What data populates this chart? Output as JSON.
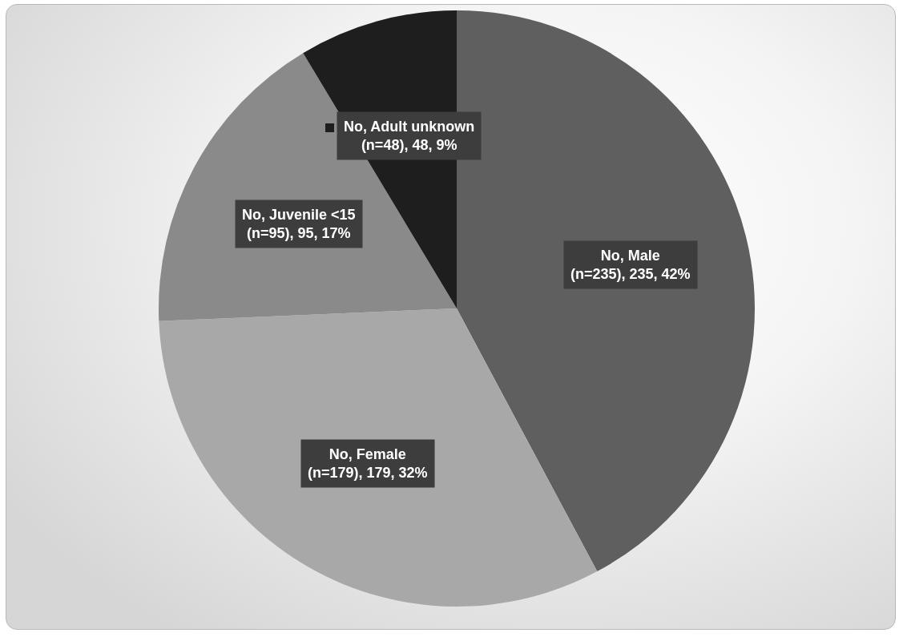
{
  "chart_data": {
    "type": "pie",
    "categories": [
      "No, Male (n=235)",
      "No, Female (n=179)",
      "No, Juvenile <15 (n=95)",
      "No, Adult unknown (n=48)"
    ],
    "values": [
      235,
      179,
      95,
      48
    ],
    "colors": [
      "#5f5f5f",
      "#a8a8a8",
      "#8a8a8a",
      "#1e1e1e"
    ],
    "value_labels": [
      "235, 42%",
      "179, 32%",
      "95, 17%",
      "48, 9%"
    ]
  }
}
